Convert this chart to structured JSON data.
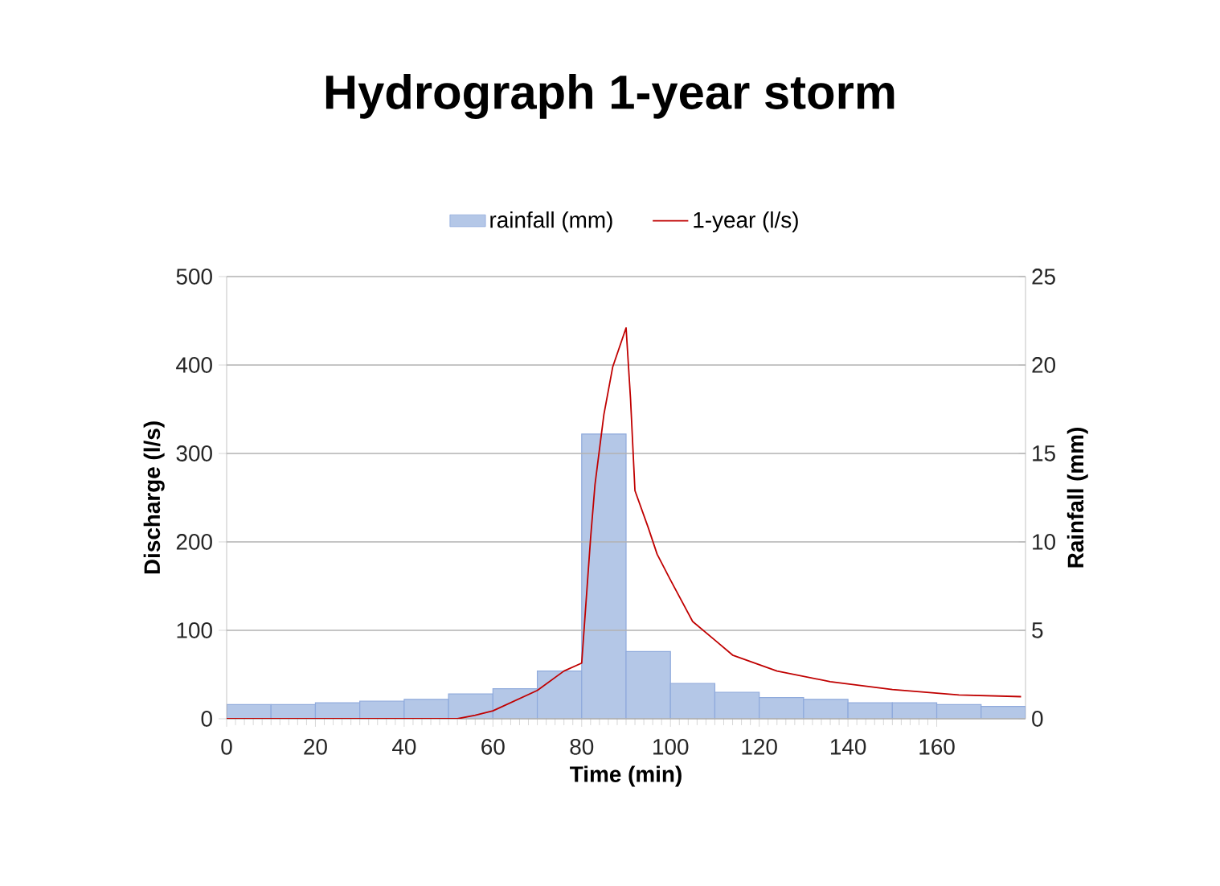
{
  "chart_data": {
    "type": "line",
    "title": "Hydrograph 1-year storm",
    "xlabel": "Time (min)",
    "ylabel": "Discharge (l/s)",
    "y2label": "Rainfall (mm)",
    "xlim": [
      0,
      180
    ],
    "xticks": [
      0,
      20,
      40,
      60,
      80,
      100,
      120,
      140,
      160
    ],
    "ylim": [
      0,
      500
    ],
    "yticks": [
      0,
      100,
      200,
      300,
      400,
      500
    ],
    "y2lim": [
      0,
      25
    ],
    "y2ticks": [
      0,
      5,
      10,
      15,
      20,
      25
    ],
    "grid": "y",
    "legend": "top",
    "series": [
      {
        "name": "rainfall (mm)",
        "type": "bar",
        "axis": "y2",
        "color": "#b4c7e7",
        "x": [
          5,
          15,
          25,
          35,
          45,
          55,
          65,
          75,
          85,
          95,
          105,
          115,
          125,
          135,
          145,
          155,
          165,
          175
        ],
        "values": [
          0.8,
          0.8,
          0.9,
          1.0,
          1.1,
          1.4,
          1.7,
          2.7,
          16.1,
          3.8,
          2.0,
          1.5,
          1.2,
          1.1,
          0.9,
          0.9,
          0.8,
          0.7
        ]
      },
      {
        "name": "1-year (l/s)",
        "axis": "y",
        "color": "#c00000",
        "x": [
          0,
          52,
          56,
          60,
          70,
          76,
          80,
          82,
          83,
          85,
          87,
          90,
          91,
          92,
          95,
          97,
          100,
          105,
          110,
          114,
          124,
          136,
          150,
          165,
          179
        ],
        "values": [
          0,
          0,
          4,
          9,
          32,
          54,
          63,
          204,
          265,
          344,
          398,
          442,
          362,
          258,
          216,
          186,
          157,
          110,
          89,
          72,
          54,
          42,
          33,
          27,
          25
        ]
      }
    ]
  }
}
